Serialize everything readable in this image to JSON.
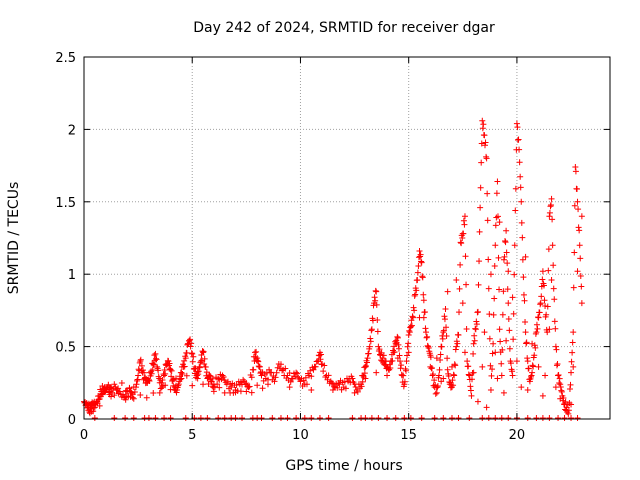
{
  "chart_data": {
    "type": "scatter",
    "title": "Day 242 of 2024, SRMTID for receiver dgar",
    "xlabel": "GPS time / hours",
    "ylabel": "SRMTID / TECUs",
    "xlim": [
      0,
      24.3
    ],
    "ylim": [
      0,
      2.5
    ],
    "xticks": [
      0,
      5,
      10,
      15,
      20
    ],
    "xtick_labels": [
      "0",
      "5",
      "10",
      "15",
      "20"
    ],
    "yticks": [
      0,
      0.5,
      1,
      1.5,
      2,
      2.5
    ],
    "ytick_labels": [
      "0",
      "0.5",
      "1",
      "1.5",
      "2",
      "2.5"
    ],
    "grid": true,
    "marker": "+",
    "color": "#ff0000",
    "series": [
      {
        "name": "SRMTID",
        "points": [
          [
            0.0,
            0.12
          ],
          [
            0.1,
            0.1
          ],
          [
            0.2,
            0.08
          ],
          [
            0.3,
            0.07
          ],
          [
            0.4,
            0.09
          ],
          [
            0.5,
            0.1
          ],
          [
            0.6,
            0.12
          ],
          [
            0.7,
            0.16
          ],
          [
            0.8,
            0.19
          ],
          [
            0.9,
            0.21
          ],
          [
            1.0,
            0.2
          ],
          [
            1.1,
            0.22
          ],
          [
            1.2,
            0.19
          ],
          [
            1.3,
            0.18
          ],
          [
            1.5,
            0.2
          ],
          [
            1.7,
            0.17
          ],
          [
            1.9,
            0.15
          ],
          [
            2.0,
            0.19
          ],
          [
            2.2,
            0.18
          ],
          [
            2.4,
            0.22
          ],
          [
            2.5,
            0.3
          ],
          [
            2.6,
            0.4
          ],
          [
            2.7,
            0.32
          ],
          [
            2.8,
            0.28
          ],
          [
            2.9,
            0.25
          ],
          [
            3.0,
            0.27
          ],
          [
            3.1,
            0.33
          ],
          [
            3.2,
            0.38
          ],
          [
            3.3,
            0.45
          ],
          [
            3.4,
            0.35
          ],
          [
            3.5,
            0.25
          ],
          [
            3.6,
            0.22
          ],
          [
            3.7,
            0.3
          ],
          [
            3.8,
            0.37
          ],
          [
            3.9,
            0.4
          ],
          [
            4.0,
            0.34
          ],
          [
            4.1,
            0.27
          ],
          [
            4.2,
            0.22
          ],
          [
            4.3,
            0.2
          ],
          [
            4.4,
            0.26
          ],
          [
            4.5,
            0.32
          ],
          [
            4.6,
            0.36
          ],
          [
            4.7,
            0.42
          ],
          [
            4.8,
            0.52
          ],
          [
            4.9,
            0.55
          ],
          [
            5.0,
            0.45
          ],
          [
            5.1,
            0.35
          ],
          [
            5.2,
            0.3
          ],
          [
            5.3,
            0.33
          ],
          [
            5.4,
            0.4
          ],
          [
            5.5,
            0.46
          ],
          [
            5.6,
            0.36
          ],
          [
            5.7,
            0.28
          ],
          [
            5.8,
            0.3
          ],
          [
            5.9,
            0.26
          ],
          [
            6.0,
            0.24
          ],
          [
            6.2,
            0.28
          ],
          [
            6.4,
            0.3
          ],
          [
            6.6,
            0.24
          ],
          [
            6.8,
            0.22
          ],
          [
            7.0,
            0.2
          ],
          [
            7.2,
            0.24
          ],
          [
            7.4,
            0.26
          ],
          [
            7.6,
            0.22
          ],
          [
            7.8,
            0.34
          ],
          [
            7.9,
            0.46
          ],
          [
            8.0,
            0.42
          ],
          [
            8.1,
            0.36
          ],
          [
            8.2,
            0.3
          ],
          [
            8.4,
            0.28
          ],
          [
            8.6,
            0.32
          ],
          [
            8.8,
            0.26
          ],
          [
            9.0,
            0.38
          ],
          [
            9.2,
            0.34
          ],
          [
            9.4,
            0.3
          ],
          [
            9.6,
            0.28
          ],
          [
            9.8,
            0.32
          ],
          [
            10.0,
            0.26
          ],
          [
            10.2,
            0.24
          ],
          [
            10.4,
            0.3
          ],
          [
            10.6,
            0.34
          ],
          [
            10.8,
            0.4
          ],
          [
            10.9,
            0.46
          ],
          [
            11.0,
            0.38
          ],
          [
            11.2,
            0.3
          ],
          [
            11.4,
            0.26
          ],
          [
            11.6,
            0.22
          ],
          [
            11.8,
            0.24
          ],
          [
            12.0,
            0.22
          ],
          [
            12.2,
            0.26
          ],
          [
            12.4,
            0.28
          ],
          [
            12.6,
            0.2
          ],
          [
            12.8,
            0.24
          ],
          [
            12.9,
            0.3
          ],
          [
            13.0,
            0.36
          ],
          [
            13.1,
            0.42
          ],
          [
            13.2,
            0.5
          ],
          [
            13.3,
            0.62
          ],
          [
            13.4,
            0.8
          ],
          [
            13.5,
            0.88
          ],
          [
            13.6,
            0.5
          ],
          [
            13.7,
            0.44
          ],
          [
            13.8,
            0.42
          ],
          [
            13.9,
            0.4
          ],
          [
            14.0,
            0.36
          ],
          [
            14.1,
            0.34
          ],
          [
            14.2,
            0.4
          ],
          [
            14.3,
            0.46
          ],
          [
            14.4,
            0.52
          ],
          [
            14.5,
            0.56
          ],
          [
            14.6,
            0.4
          ],
          [
            14.7,
            0.3
          ],
          [
            14.8,
            0.24
          ],
          [
            14.9,
            0.4
          ],
          [
            15.0,
            0.58
          ],
          [
            15.1,
            0.64
          ],
          [
            15.2,
            0.7
          ],
          [
            15.3,
            0.86
          ],
          [
            15.4,
            0.96
          ],
          [
            15.5,
            1.16
          ],
          [
            15.6,
            1.08
          ],
          [
            15.7,
            0.82
          ],
          [
            15.8,
            0.6
          ],
          [
            15.9,
            0.5
          ],
          [
            16.0,
            0.44
          ],
          [
            16.1,
            0.3
          ],
          [
            16.2,
            0.22
          ],
          [
            16.3,
            0.18
          ],
          [
            16.4,
            0.3
          ],
          [
            16.5,
            0.5
          ],
          [
            16.6,
            0.6
          ],
          [
            16.7,
            0.76
          ],
          [
            16.8,
            0.34
          ],
          [
            16.9,
            0.24
          ],
          [
            17.0,
            0.22
          ],
          [
            17.1,
            0.3
          ],
          [
            17.2,
            0.5
          ],
          [
            17.3,
            0.58
          ],
          [
            17.4,
            1.22
          ],
          [
            17.5,
            1.28
          ],
          [
            17.6,
            1.4
          ],
          [
            17.7,
            0.4
          ],
          [
            17.8,
            0.3
          ],
          [
            17.9,
            0.16
          ],
          [
            18.0,
            0.52
          ],
          [
            18.1,
            0.62
          ],
          [
            18.2,
            0.74
          ],
          [
            18.3,
            1.46
          ],
          [
            18.4,
            2.06
          ],
          [
            18.5,
            1.96
          ],
          [
            18.6,
            1.8
          ],
          [
            18.7,
            0.9
          ],
          [
            18.8,
            0.2
          ],
          [
            18.9,
            0.52
          ],
          [
            19.0,
            1.2
          ],
          [
            19.1,
            1.64
          ],
          [
            19.2,
            0.62
          ],
          [
            19.3,
            0.3
          ],
          [
            19.4,
            1.1
          ],
          [
            19.5,
            1.3
          ],
          [
            19.6,
            0.8
          ],
          [
            19.7,
            0.4
          ],
          [
            19.8,
            0.3
          ],
          [
            19.9,
            1.2
          ],
          [
            20.0,
            2.04
          ],
          [
            20.1,
            1.86
          ],
          [
            20.2,
            1.5
          ],
          [
            20.3,
            0.98
          ],
          [
            20.4,
            0.6
          ],
          [
            20.5,
            0.4
          ],
          [
            20.6,
            0.26
          ],
          [
            20.7,
            0.32
          ],
          [
            20.8,
            0.44
          ],
          [
            20.9,
            0.6
          ],
          [
            21.0,
            0.7
          ],
          [
            21.1,
            0.8
          ],
          [
            21.2,
            1.02
          ],
          [
            21.3,
            0.78
          ],
          [
            21.4,
            0.6
          ],
          [
            21.5,
            1.4
          ],
          [
            21.6,
            1.52
          ],
          [
            21.7,
            0.9
          ],
          [
            21.8,
            0.5
          ],
          [
            21.9,
            0.3
          ],
          [
            22.0,
            0.24
          ],
          [
            22.1,
            0.16
          ],
          [
            22.2,
            0.1
          ],
          [
            22.3,
            0.08
          ],
          [
            22.4,
            0.06
          ],
          [
            22.5,
            0.32
          ],
          [
            22.6,
            0.6
          ],
          [
            22.7,
            1.74
          ],
          [
            22.8,
            1.5
          ],
          [
            22.9,
            1.2
          ],
          [
            23.0,
            0.8
          ],
          [
            0.2,
            0.06
          ],
          [
            0.5,
            0.08
          ],
          [
            1.4,
            0.24
          ],
          [
            2.1,
            0.21
          ],
          [
            2.3,
            0.14
          ],
          [
            3.5,
            0.18
          ],
          [
            4.5,
            0.28
          ],
          [
            5.5,
            0.24
          ],
          [
            6.5,
            0.18
          ],
          [
            7.5,
            0.19
          ],
          [
            8.5,
            0.24
          ],
          [
            9.5,
            0.22
          ],
          [
            10.5,
            0.2
          ],
          [
            11.5,
            0.2
          ],
          [
            12.5,
            0.18
          ],
          [
            13.0,
            0.28
          ],
          [
            13.5,
            0.32
          ],
          [
            14.0,
            0.3
          ],
          [
            14.5,
            0.42
          ],
          [
            15.0,
            0.46
          ],
          [
            15.5,
            0.7
          ],
          [
            16.0,
            0.36
          ],
          [
            16.5,
            0.26
          ],
          [
            17.0,
            0.36
          ],
          [
            17.5,
            0.8
          ],
          [
            18.0,
            0.32
          ],
          [
            18.5,
            0.6
          ],
          [
            19.0,
            0.46
          ],
          [
            19.5,
            0.54
          ],
          [
            20.0,
            0.4
          ],
          [
            20.5,
            0.2
          ],
          [
            21.0,
            0.36
          ],
          [
            21.5,
            0.62
          ],
          [
            22.0,
            0.14
          ],
          [
            22.5,
            0.1
          ],
          [
            18.2,
            0.12
          ],
          [
            18.6,
            0.08
          ],
          [
            19.4,
            0.18
          ],
          [
            20.2,
            0.22
          ],
          [
            21.2,
            0.16
          ],
          [
            16.8,
            0.88
          ],
          [
            17.2,
            0.96
          ],
          [
            19.2,
            1.36
          ],
          [
            19.6,
            1.02
          ],
          [
            20.4,
            1.12
          ],
          [
            21.6,
            0.96
          ],
          [
            23.0,
            1.4
          ],
          [
            22.8,
            1.02
          ],
          [
            18.8,
            1.0
          ],
          [
            19.8,
            0.84
          ],
          [
            15.7,
            0.7
          ],
          [
            16.3,
            0.42
          ],
          [
            16.6,
            0.28
          ],
          [
            17.6,
            0.46
          ],
          [
            18.4,
            0.36
          ],
          [
            19.1,
            0.28
          ],
          [
            20.7,
            0.52
          ],
          [
            21.3,
            0.3
          ],
          [
            21.8,
            0.22
          ],
          [
            22.6,
            0.36
          ]
        ]
      }
    ],
    "baseline_hits_x": [
      0.5,
      1.4,
      1.9,
      2.3,
      2.8,
      3.0,
      3.3,
      3.7,
      4.0,
      4.7,
      5.1,
      5.4,
      5.7,
      6.2,
      6.5,
      6.8,
      7.0,
      7.3,
      7.8,
      8.0,
      8.2,
      8.7,
      9.1,
      9.4,
      9.8,
      10.2,
      10.5,
      10.9,
      11.3,
      12.4,
      12.8,
      13.0,
      13.3,
      13.6,
      14.0,
      14.4,
      14.8,
      15.1,
      15.6,
      16.2,
      16.6,
      17.0,
      17.3,
      17.8,
      18.4,
      18.7,
      19.0,
      19.3,
      19.6,
      20.0,
      20.5,
      20.9,
      21.2,
      21.5,
      21.9,
      22.2,
      22.5,
      22.8
    ]
  }
}
